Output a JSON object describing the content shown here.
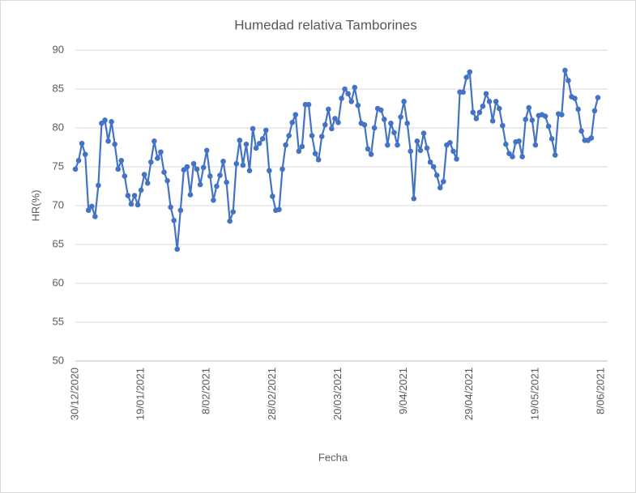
{
  "chart_data": {
    "type": "line",
    "title": "Humedad relativa Tamborines",
    "x_label": "Fecha",
    "y_label": "HR(%)",
    "categories": [
      "30/12/2020",
      null,
      null,
      null,
      null,
      null,
      null,
      null,
      null,
      null,
      null,
      null,
      null,
      null,
      null,
      null,
      null,
      null,
      null,
      null,
      "19/01/2021",
      null,
      null,
      null,
      null,
      null,
      null,
      null,
      null,
      null,
      null,
      null,
      null,
      null,
      null,
      null,
      null,
      null,
      null,
      null,
      "8/02/2021",
      null,
      null,
      null,
      null,
      null,
      null,
      null,
      null,
      null,
      null,
      null,
      null,
      null,
      null,
      null,
      null,
      null,
      null,
      null,
      "28/02/2021",
      null,
      null,
      null,
      null,
      null,
      null,
      null,
      null,
      null,
      null,
      null,
      null,
      null,
      null,
      null,
      null,
      null,
      null,
      null,
      "20/03/2021",
      null,
      null,
      null,
      null,
      null,
      null,
      null,
      null,
      null,
      null,
      null,
      null,
      null,
      null,
      null,
      null,
      null,
      null,
      null,
      "9/04/2021",
      null,
      null,
      null,
      null,
      null,
      null,
      null,
      null,
      null,
      null,
      null,
      null,
      null,
      null,
      null,
      null,
      null,
      null,
      null,
      "29/04/2021",
      null,
      null,
      null,
      null,
      null,
      null,
      null,
      null,
      null,
      null,
      null,
      null,
      null,
      null,
      null,
      null,
      null,
      null,
      null,
      "19/05/2021",
      null,
      null,
      null,
      null,
      null,
      null,
      null,
      null,
      null,
      null,
      null,
      null,
      null,
      null,
      null,
      null,
      null,
      null,
      null,
      "8/06/2021"
    ],
    "values": [
      74.7,
      75.8,
      78.0,
      76.6,
      69.4,
      69.9,
      68.6,
      72.6,
      80.6,
      81.0,
      78.3,
      80.8,
      77.9,
      74.7,
      75.8,
      73.8,
      71.3,
      70.2,
      71.3,
      70.1,
      72.0,
      74.0,
      72.9,
      75.6,
      78.3,
      76.1,
      76.9,
      74.3,
      73.2,
      69.8,
      68.1,
      64.4,
      69.4,
      74.6,
      75.0,
      71.4,
      75.4,
      74.7,
      72.7,
      74.9,
      77.1,
      73.8,
      70.7,
      72.5,
      73.9,
      75.7,
      73.0,
      68.0,
      69.2,
      75.4,
      78.4,
      75.2,
      77.9,
      74.5,
      79.9,
      77.4,
      78.0,
      78.6,
      79.7,
      74.5,
      71.2,
      69.4,
      69.5,
      74.7,
      77.8,
      79.0,
      80.7,
      81.7,
      77.0,
      77.6,
      83.0,
      83.0,
      79.0,
      76.7,
      75.9,
      78.9,
      80.4,
      82.4,
      79.9,
      81.2,
      80.7,
      83.8,
      85.0,
      84.4,
      83.4,
      85.2,
      82.9,
      80.6,
      80.4,
      77.3,
      76.6,
      80.0,
      82.5,
      82.3,
      81.1,
      77.8,
      80.6,
      79.4,
      77.8,
      81.4,
      83.4,
      80.6,
      77.0,
      70.9,
      78.3,
      77.1,
      79.3,
      77.4,
      75.6,
      75.0,
      73.9,
      72.3,
      73.1,
      77.8,
      78.1,
      77.0,
      76.0,
      84.6,
      84.6,
      86.5,
      87.2,
      82.0,
      81.2,
      82.0,
      82.8,
      84.4,
      83.4,
      80.9,
      83.4,
      82.5,
      80.3,
      77.9,
      76.7,
      76.3,
      78.2,
      78.3,
      76.3,
      81.1,
      82.6,
      81.0,
      77.8,
      81.6,
      81.7,
      81.5,
      80.2,
      78.6,
      76.5,
      81.8,
      81.7,
      87.4,
      86.1,
      84.0,
      83.8,
      82.4,
      79.6,
      78.4,
      78.4,
      78.7,
      82.2,
      83.9,
      null
    ],
    "color": "#4472c4",
    "ylim": [
      50,
      90
    ],
    "yticks": [
      50,
      55,
      60,
      65,
      70,
      75,
      80,
      85,
      90
    ],
    "grid": true
  }
}
